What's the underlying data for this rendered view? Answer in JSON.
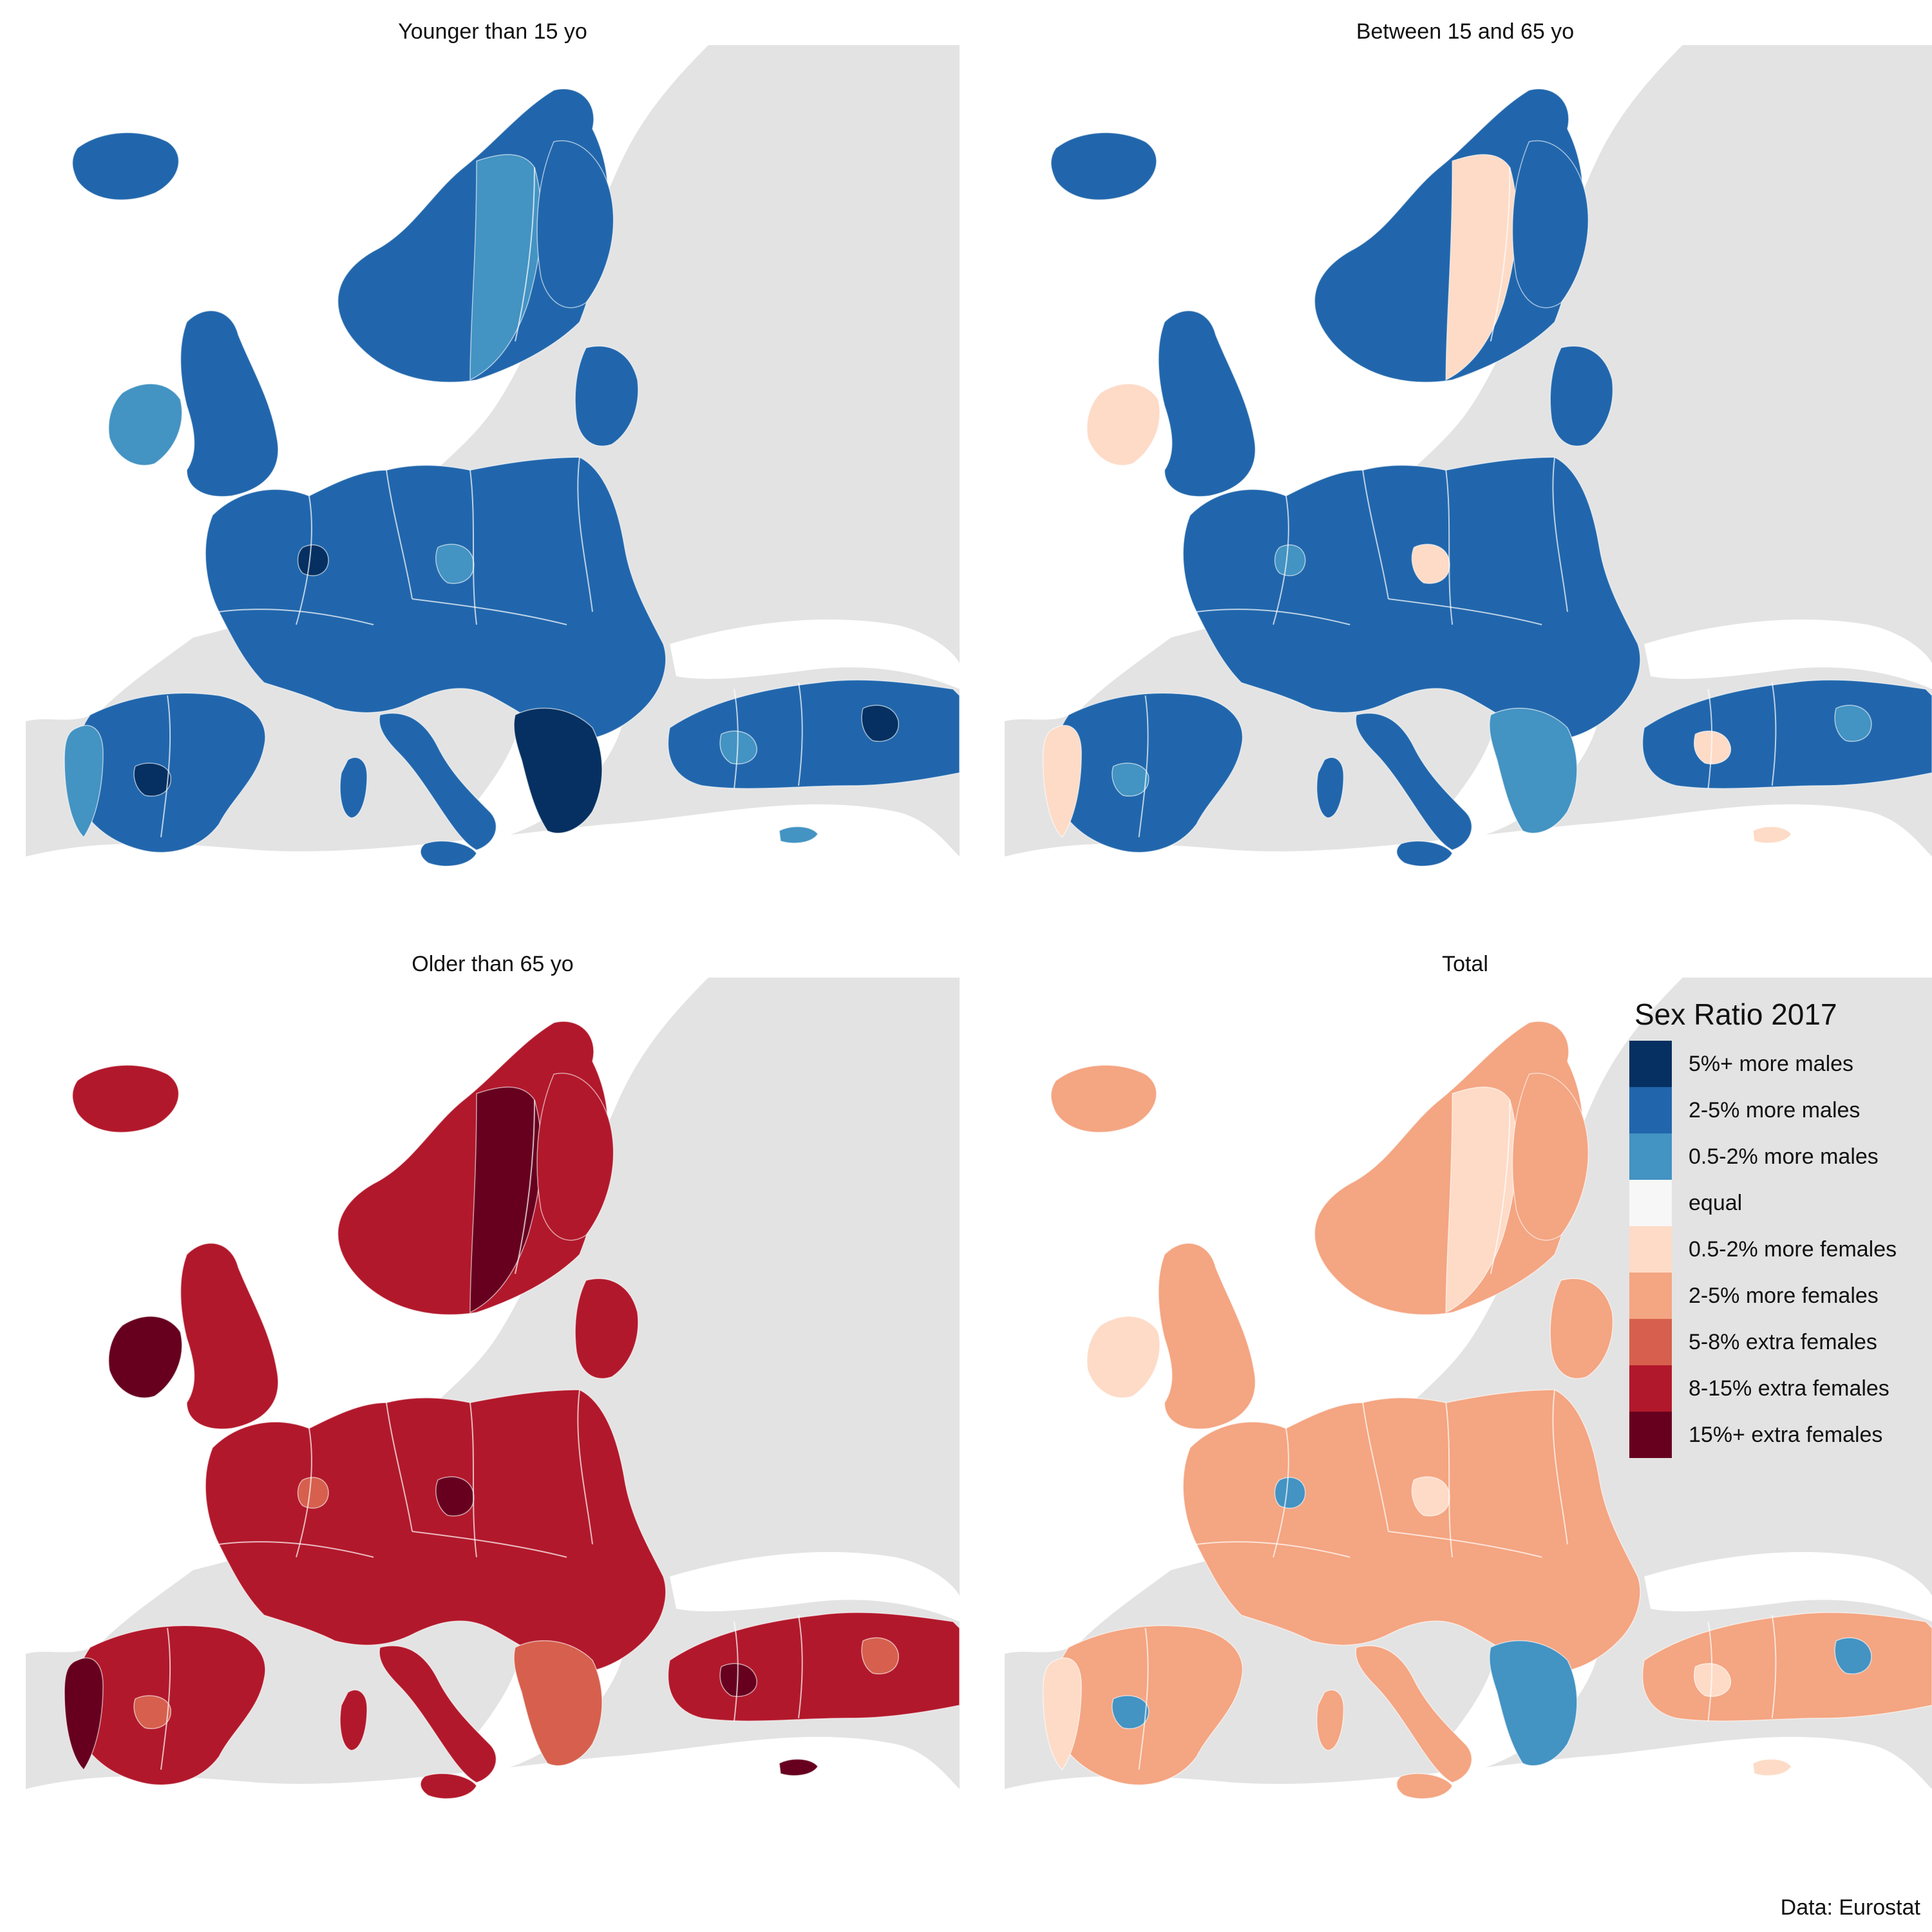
{
  "panels": [
    {
      "title": "Younger than 15 yo",
      "fill": "#2166ac",
      "alt": "#4393c3",
      "accent": "#053061"
    },
    {
      "title": "Between 15 and 65 yo",
      "fill": "#2166ac",
      "alt": "#fddbc7",
      "accent": "#4393c3"
    },
    {
      "title": "Older than 65 yo",
      "fill": "#b2182b",
      "alt": "#67001f",
      "accent": "#d6604d"
    },
    {
      "title": "Total",
      "fill": "#f4a582",
      "alt": "#fddbc7",
      "accent": "#4393c3"
    }
  ],
  "legend": {
    "title": "Sex Ratio 2017",
    "items": [
      {
        "label": "5%+ more males",
        "color": "#053061"
      },
      {
        "label": "2-5% more males",
        "color": "#2166ac"
      },
      {
        "label": "0.5-2% more males",
        "color": "#4393c3"
      },
      {
        "label": "equal",
        "color": "#f7f7f7"
      },
      {
        "label": "0.5-2% more females",
        "color": "#fddbc7"
      },
      {
        "label": "2-5% more females",
        "color": "#f4a582"
      },
      {
        "label": "5-8% extra females",
        "color": "#d6604d"
      },
      {
        "label": "8-15% extra females",
        "color": "#b2182b"
      },
      {
        "label": "15%+ extra females",
        "color": "#67001f"
      }
    ]
  },
  "caption": "Data: Eurostat",
  "colors": {
    "sea": "#ffffff",
    "land_outside": "#e3e3e3",
    "border": "#ffffff"
  }
}
